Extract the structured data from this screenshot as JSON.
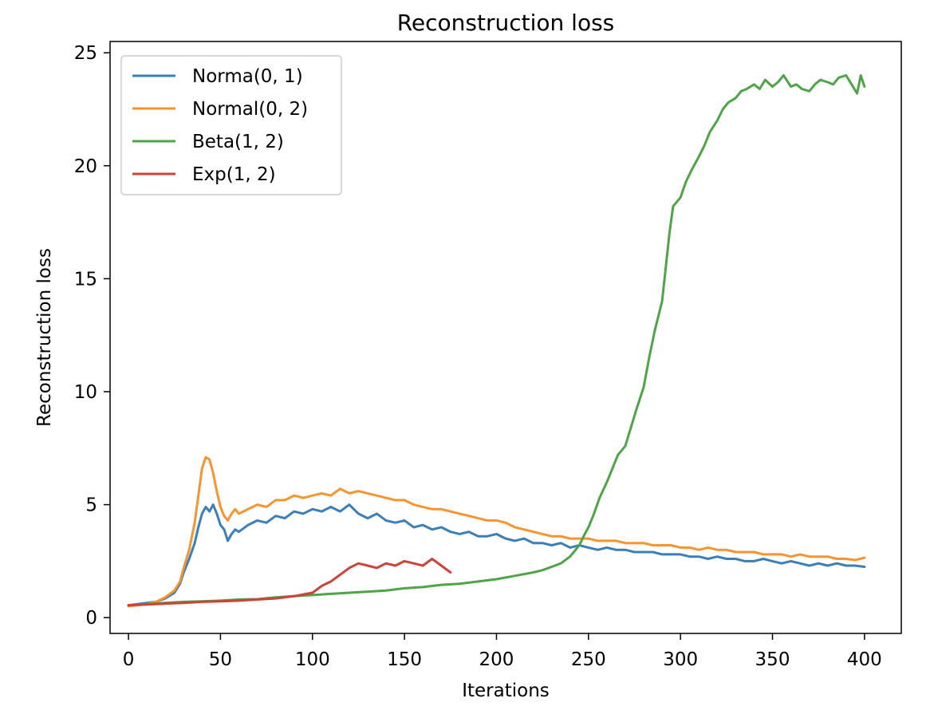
{
  "chart_data": {
    "type": "line",
    "title": "Reconstruction loss",
    "xlabel": "Iterations",
    "ylabel": "Reconstruction loss",
    "xlim": [
      -10,
      420
    ],
    "ylim": [
      -0.7,
      25.5
    ],
    "xticks": [
      0,
      50,
      100,
      150,
      200,
      250,
      300,
      350,
      400
    ],
    "yticks": [
      0,
      5,
      10,
      15,
      20,
      25
    ],
    "grid": false,
    "legend_position": "top-left",
    "series": [
      {
        "name": "Norma(0, 1)",
        "color": "#3a7fb8",
        "points": [
          [
            0,
            0.55
          ],
          [
            5,
            0.6
          ],
          [
            10,
            0.65
          ],
          [
            15,
            0.7
          ],
          [
            20,
            0.85
          ],
          [
            25,
            1.1
          ],
          [
            28,
            1.5
          ],
          [
            30,
            2.0
          ],
          [
            33,
            2.6
          ],
          [
            36,
            3.3
          ],
          [
            38,
            4.0
          ],
          [
            40,
            4.6
          ],
          [
            42,
            4.9
          ],
          [
            44,
            4.7
          ],
          [
            46,
            5.0
          ],
          [
            48,
            4.6
          ],
          [
            50,
            4.1
          ],
          [
            52,
            3.9
          ],
          [
            54,
            3.4
          ],
          [
            56,
            3.7
          ],
          [
            58,
            3.9
          ],
          [
            60,
            3.8
          ],
          [
            65,
            4.1
          ],
          [
            70,
            4.3
          ],
          [
            75,
            4.2
          ],
          [
            80,
            4.5
          ],
          [
            85,
            4.4
          ],
          [
            90,
            4.7
          ],
          [
            95,
            4.6
          ],
          [
            100,
            4.8
          ],
          [
            105,
            4.7
          ],
          [
            110,
            4.9
          ],
          [
            115,
            4.7
          ],
          [
            120,
            5.0
          ],
          [
            125,
            4.6
          ],
          [
            130,
            4.4
          ],
          [
            135,
            4.6
          ],
          [
            140,
            4.3
          ],
          [
            145,
            4.2
          ],
          [
            150,
            4.3
          ],
          [
            155,
            4.0
          ],
          [
            160,
            4.1
          ],
          [
            165,
            3.9
          ],
          [
            170,
            4.0
          ],
          [
            175,
            3.8
          ],
          [
            180,
            3.7
          ],
          [
            185,
            3.8
          ],
          [
            190,
            3.6
          ],
          [
            195,
            3.6
          ],
          [
            200,
            3.7
          ],
          [
            205,
            3.5
          ],
          [
            210,
            3.4
          ],
          [
            215,
            3.5
          ],
          [
            220,
            3.3
          ],
          [
            225,
            3.3
          ],
          [
            230,
            3.2
          ],
          [
            235,
            3.3
          ],
          [
            240,
            3.1
          ],
          [
            245,
            3.2
          ],
          [
            250,
            3.1
          ],
          [
            255,
            3.0
          ],
          [
            260,
            3.1
          ],
          [
            265,
            3.0
          ],
          [
            270,
            3.0
          ],
          [
            275,
            2.9
          ],
          [
            280,
            2.9
          ],
          [
            285,
            2.9
          ],
          [
            290,
            2.8
          ],
          [
            295,
            2.8
          ],
          [
            300,
            2.8
          ],
          [
            305,
            2.7
          ],
          [
            310,
            2.7
          ],
          [
            315,
            2.6
          ],
          [
            320,
            2.7
          ],
          [
            325,
            2.6
          ],
          [
            330,
            2.6
          ],
          [
            335,
            2.5
          ],
          [
            340,
            2.5
          ],
          [
            345,
            2.6
          ],
          [
            350,
            2.5
          ],
          [
            355,
            2.4
          ],
          [
            360,
            2.5
          ],
          [
            365,
            2.4
          ],
          [
            370,
            2.3
          ],
          [
            375,
            2.4
          ],
          [
            380,
            2.3
          ],
          [
            385,
            2.4
          ],
          [
            390,
            2.3
          ],
          [
            395,
            2.3
          ],
          [
            400,
            2.25
          ]
        ]
      },
      {
        "name": "Normal(0, 2)",
        "color": "#f5952f",
        "points": [
          [
            0,
            0.5
          ],
          [
            5,
            0.55
          ],
          [
            10,
            0.6
          ],
          [
            15,
            0.7
          ],
          [
            20,
            0.9
          ],
          [
            25,
            1.2
          ],
          [
            28,
            1.6
          ],
          [
            30,
            2.2
          ],
          [
            33,
            3.0
          ],
          [
            36,
            4.2
          ],
          [
            38,
            5.4
          ],
          [
            40,
            6.6
          ],
          [
            42,
            7.1
          ],
          [
            44,
            7.0
          ],
          [
            46,
            6.4
          ],
          [
            48,
            5.6
          ],
          [
            50,
            4.9
          ],
          [
            52,
            4.5
          ],
          [
            54,
            4.3
          ],
          [
            56,
            4.6
          ],
          [
            58,
            4.8
          ],
          [
            60,
            4.6
          ],
          [
            65,
            4.8
          ],
          [
            70,
            5.0
          ],
          [
            75,
            4.9
          ],
          [
            80,
            5.2
          ],
          [
            85,
            5.2
          ],
          [
            90,
            5.4
          ],
          [
            95,
            5.3
          ],
          [
            100,
            5.4
          ],
          [
            105,
            5.5
          ],
          [
            110,
            5.4
          ],
          [
            115,
            5.7
          ],
          [
            120,
            5.5
          ],
          [
            125,
            5.6
          ],
          [
            130,
            5.5
          ],
          [
            135,
            5.4
          ],
          [
            140,
            5.3
          ],
          [
            145,
            5.2
          ],
          [
            150,
            5.2
          ],
          [
            155,
            5.0
          ],
          [
            160,
            4.9
          ],
          [
            165,
            4.8
          ],
          [
            170,
            4.8
          ],
          [
            175,
            4.7
          ],
          [
            180,
            4.6
          ],
          [
            185,
            4.5
          ],
          [
            190,
            4.4
          ],
          [
            195,
            4.3
          ],
          [
            200,
            4.3
          ],
          [
            205,
            4.2
          ],
          [
            210,
            4.0
          ],
          [
            215,
            3.9
          ],
          [
            220,
            3.8
          ],
          [
            225,
            3.7
          ],
          [
            230,
            3.6
          ],
          [
            235,
            3.6
          ],
          [
            240,
            3.5
          ],
          [
            245,
            3.5
          ],
          [
            250,
            3.5
          ],
          [
            255,
            3.4
          ],
          [
            260,
            3.4
          ],
          [
            265,
            3.4
          ],
          [
            270,
            3.3
          ],
          [
            275,
            3.3
          ],
          [
            280,
            3.3
          ],
          [
            285,
            3.2
          ],
          [
            290,
            3.2
          ],
          [
            295,
            3.2
          ],
          [
            300,
            3.1
          ],
          [
            305,
            3.1
          ],
          [
            310,
            3.0
          ],
          [
            315,
            3.1
          ],
          [
            320,
            3.0
          ],
          [
            325,
            3.0
          ],
          [
            330,
            2.9
          ],
          [
            335,
            2.9
          ],
          [
            340,
            2.9
          ],
          [
            345,
            2.8
          ],
          [
            350,
            2.8
          ],
          [
            355,
            2.8
          ],
          [
            360,
            2.7
          ],
          [
            365,
            2.8
          ],
          [
            370,
            2.7
          ],
          [
            375,
            2.7
          ],
          [
            380,
            2.7
          ],
          [
            385,
            2.6
          ],
          [
            390,
            2.6
          ],
          [
            395,
            2.55
          ],
          [
            400,
            2.65
          ]
        ]
      },
      {
        "name": "Beta(1, 2)",
        "color": "#4ea447",
        "points": [
          [
            0,
            0.55
          ],
          [
            10,
            0.6
          ],
          [
            20,
            0.65
          ],
          [
            30,
            0.7
          ],
          [
            40,
            0.72
          ],
          [
            50,
            0.75
          ],
          [
            60,
            0.8
          ],
          [
            70,
            0.82
          ],
          [
            80,
            0.9
          ],
          [
            90,
            0.95
          ],
          [
            100,
            1.0
          ],
          [
            110,
            1.05
          ],
          [
            120,
            1.1
          ],
          [
            130,
            1.15
          ],
          [
            140,
            1.2
          ],
          [
            150,
            1.3
          ],
          [
            160,
            1.35
          ],
          [
            170,
            1.45
          ],
          [
            180,
            1.5
          ],
          [
            190,
            1.6
          ],
          [
            200,
            1.7
          ],
          [
            210,
            1.85
          ],
          [
            220,
            2.0
          ],
          [
            225,
            2.1
          ],
          [
            230,
            2.25
          ],
          [
            235,
            2.4
          ],
          [
            240,
            2.7
          ],
          [
            245,
            3.2
          ],
          [
            248,
            3.7
          ],
          [
            250,
            4.0
          ],
          [
            253,
            4.6
          ],
          [
            256,
            5.3
          ],
          [
            260,
            6.0
          ],
          [
            263,
            6.6
          ],
          [
            266,
            7.2
          ],
          [
            270,
            7.6
          ],
          [
            273,
            8.4
          ],
          [
            276,
            9.2
          ],
          [
            280,
            10.2
          ],
          [
            283,
            11.5
          ],
          [
            286,
            12.7
          ],
          [
            290,
            14.0
          ],
          [
            292,
            15.5
          ],
          [
            294,
            17.0
          ],
          [
            296,
            18.2
          ],
          [
            300,
            18.6
          ],
          [
            303,
            19.3
          ],
          [
            306,
            19.8
          ],
          [
            310,
            20.4
          ],
          [
            313,
            20.9
          ],
          [
            316,
            21.5
          ],
          [
            320,
            22.0
          ],
          [
            323,
            22.5
          ],
          [
            326,
            22.8
          ],
          [
            330,
            23.0
          ],
          [
            333,
            23.3
          ],
          [
            336,
            23.4
          ],
          [
            340,
            23.6
          ],
          [
            343,
            23.4
          ],
          [
            346,
            23.8
          ],
          [
            350,
            23.5
          ],
          [
            353,
            23.7
          ],
          [
            356,
            24.0
          ],
          [
            360,
            23.5
          ],
          [
            363,
            23.6
          ],
          [
            366,
            23.4
          ],
          [
            370,
            23.3
          ],
          [
            373,
            23.6
          ],
          [
            376,
            23.8
          ],
          [
            380,
            23.7
          ],
          [
            383,
            23.6
          ],
          [
            386,
            23.9
          ],
          [
            390,
            24.0
          ],
          [
            393,
            23.6
          ],
          [
            396,
            23.2
          ],
          [
            398,
            24.0
          ],
          [
            400,
            23.5
          ]
        ]
      },
      {
        "name": "Exp(1, 2)",
        "color": "#cc4439",
        "points": [
          [
            0,
            0.55
          ],
          [
            10,
            0.58
          ],
          [
            20,
            0.62
          ],
          [
            30,
            0.65
          ],
          [
            40,
            0.7
          ],
          [
            50,
            0.72
          ],
          [
            60,
            0.75
          ],
          [
            70,
            0.8
          ],
          [
            80,
            0.85
          ],
          [
            90,
            0.95
          ],
          [
            100,
            1.1
          ],
          [
            105,
            1.4
          ],
          [
            110,
            1.6
          ],
          [
            115,
            1.9
          ],
          [
            120,
            2.2
          ],
          [
            125,
            2.4
          ],
          [
            130,
            2.3
          ],
          [
            135,
            2.2
          ],
          [
            140,
            2.4
          ],
          [
            145,
            2.3
          ],
          [
            150,
            2.5
          ],
          [
            155,
            2.4
          ],
          [
            160,
            2.3
          ],
          [
            165,
            2.6
          ],
          [
            170,
            2.3
          ],
          [
            175,
            2.0
          ]
        ]
      }
    ]
  }
}
